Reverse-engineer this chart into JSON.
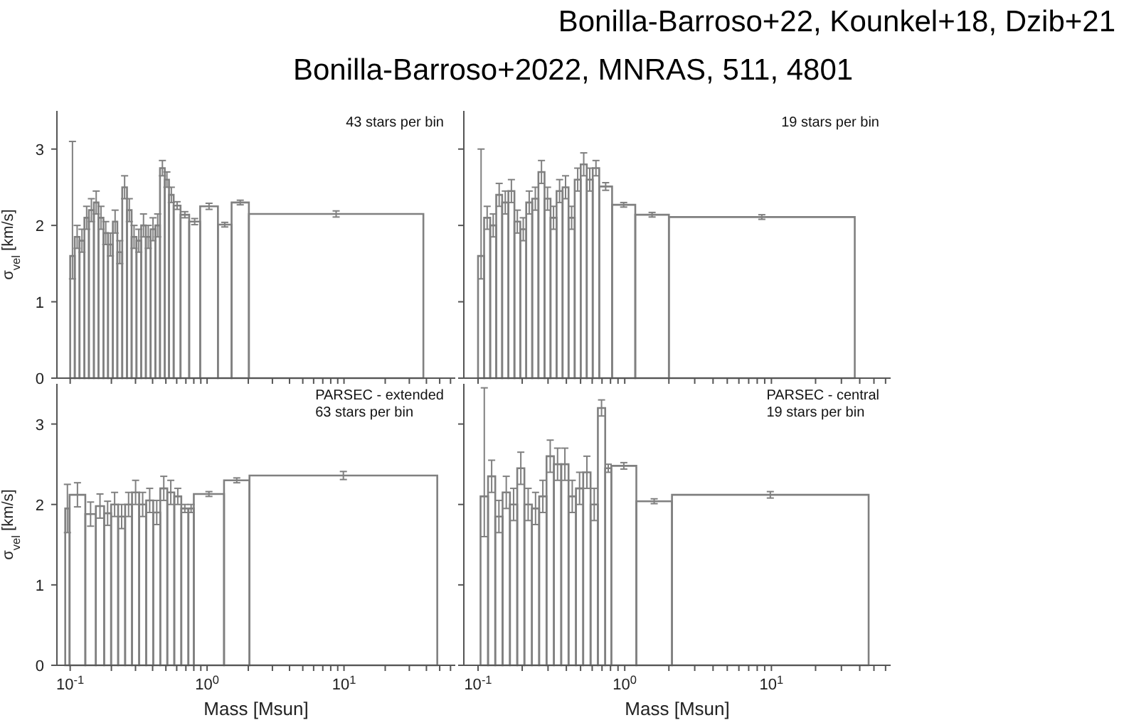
{
  "chart_data": [
    {
      "type": "other",
      "title": "Bonilla-Barroso+22, Kounkel+18, Dzib+21",
      "subtitle": "Bonilla-Barroso+2022, MNRAS, 511, 4801"
    },
    {
      "type": "histogram",
      "ylabel": "σ$_{vel}$ [km/s]",
      "annotations": [
        "43 stars per bin"
      ],
      "log": "x",
      "tick_labels": "y",
      "color": "#808080",
      "xlim": [
        0.08,
        65
      ],
      "ylim": [
        0,
        3.5
      ],
      "yticks": [
        0,
        1,
        2,
        3
      ],
      "xticks": [
        {
          "value": 0.1,
          "label": null
        },
        {
          "value": 0.2,
          "label": null
        },
        {
          "value": 0.3,
          "label": null
        },
        {
          "value": 0.4,
          "label": null
        },
        {
          "value": 0.5,
          "label": null
        },
        {
          "value": 0.6,
          "label": null
        },
        {
          "value": 0.7,
          "label": null
        },
        {
          "value": 0.8,
          "label": null
        },
        {
          "value": 0.9,
          "label": null
        },
        {
          "value": 1,
          "label": null
        },
        {
          "value": 2,
          "label": null
        },
        {
          "value": 3,
          "label": null
        },
        {
          "value": 4,
          "label": null
        },
        {
          "value": 5,
          "label": null
        },
        {
          "value": 6,
          "label": null
        },
        {
          "value": 7,
          "label": null
        },
        {
          "value": 8,
          "label": null
        },
        {
          "value": 9,
          "label": null
        },
        {
          "value": 10,
          "label": null
        },
        {
          "value": 20,
          "label": null
        },
        {
          "value": 30,
          "label": null
        },
        {
          "value": 40,
          "label": null
        },
        {
          "value": 50,
          "label": null
        },
        {
          "value": 60,
          "label": null
        }
      ],
      "bins": [
        0.1,
        0.108,
        0.117,
        0.127,
        0.137,
        0.149,
        0.161,
        0.175,
        0.189,
        0.205,
        0.221,
        0.24,
        0.26,
        0.281,
        0.305,
        0.33,
        0.357,
        0.387,
        0.419,
        0.453,
        0.491,
        0.527,
        0.57,
        0.64,
        0.74,
        0.89,
        1.2,
        1.51,
        2.02,
        38
      ],
      "values": [
        1.6,
        1.85,
        1.8,
        2.1,
        2.2,
        2.3,
        2.1,
        1.9,
        1.75,
        2.05,
        1.65,
        2.5,
        2.2,
        1.85,
        1.8,
        2.0,
        1.85,
        1.95,
        2.0,
        2.75,
        2.6,
        2.4,
        2.26,
        2.14,
        2.05,
        2.25,
        2.01,
        2.3,
        2.15
      ],
      "errors": [
        [
          1.3,
          3.1
        ],
        0.15,
        0.15,
        0.15,
        0.15,
        0.15,
        0.15,
        0.15,
        0.15,
        0.15,
        0.15,
        0.15,
        0.15,
        0.15,
        0.15,
        0.15,
        0.15,
        0.15,
        0.15,
        0.1,
        0.1,
        0.1,
        0.05,
        0.04,
        0.04,
        0.04,
        0.03,
        0.03,
        0.04
      ]
    },
    {
      "type": "histogram",
      "annotations": [
        "19 stars per bin"
      ],
      "log": "x",
      "tick_labels": false,
      "color": "#808080",
      "xlim": [
        0.08,
        65
      ],
      "ylim": [
        0,
        3.5
      ],
      "yticks": [
        0,
        1,
        2,
        3
      ],
      "xticks": [
        {
          "value": 0.1,
          "label": null
        },
        {
          "value": 0.2,
          "label": null
        },
        {
          "value": 0.3,
          "label": null
        },
        {
          "value": 0.4,
          "label": null
        },
        {
          "value": 0.5,
          "label": null
        },
        {
          "value": 0.6,
          "label": null
        },
        {
          "value": 0.7,
          "label": null
        },
        {
          "value": 0.8,
          "label": null
        },
        {
          "value": 0.9,
          "label": null
        },
        {
          "value": 1,
          "label": null
        },
        {
          "value": 2,
          "label": null
        },
        {
          "value": 3,
          "label": null
        },
        {
          "value": 4,
          "label": null
        },
        {
          "value": 5,
          "label": null
        },
        {
          "value": 6,
          "label": null
        },
        {
          "value": 7,
          "label": null
        },
        {
          "value": 8,
          "label": null
        },
        {
          "value": 9,
          "label": null
        },
        {
          "value": 10,
          "label": null
        },
        {
          "value": 20,
          "label": null
        },
        {
          "value": 30,
          "label": null
        },
        {
          "value": 40,
          "label": null
        },
        {
          "value": 50,
          "label": null
        },
        {
          "value": 60,
          "label": null
        }
      ],
      "bins": [
        0.1,
        0.11,
        0.121,
        0.133,
        0.146,
        0.161,
        0.177,
        0.194,
        0.213,
        0.234,
        0.258,
        0.284,
        0.312,
        0.343,
        0.377,
        0.414,
        0.456,
        0.501,
        0.551,
        0.605,
        0.67,
        0.82,
        1.18,
        2.0,
        37
      ],
      "values": [
        1.6,
        2.1,
        2.0,
        2.4,
        2.3,
        2.45,
        2.05,
        1.95,
        2.3,
        2.35,
        2.7,
        2.35,
        2.1,
        2.45,
        2.5,
        2.1,
        2.6,
        2.8,
        2.6,
        2.75,
        2.51,
        2.27,
        2.14,
        2.11
      ],
      "errors": [
        [
          1.3,
          3.0
        ],
        0.15,
        0.15,
        0.15,
        0.15,
        0.15,
        0.15,
        0.15,
        0.15,
        0.15,
        0.15,
        0.15,
        0.15,
        0.15,
        0.15,
        0.15,
        0.15,
        0.15,
        0.15,
        0.1,
        0.05,
        0.03,
        0.03,
        0.03
      ]
    },
    {
      "type": "histogram",
      "xlabel": "Mass [Msun]",
      "ylabel": "σ$_{vel}$ [km/s]",
      "annotations": [
        "PARSEC - extended",
        "63 stars per bin"
      ],
      "log": "x",
      "color": "#808080",
      "xlim": [
        0.08,
        65
      ],
      "ylim": [
        0,
        3.5
      ],
      "yticks": [
        0,
        1,
        2,
        3
      ],
      "xticks": [
        {
          "value": 0.1,
          "label": "10$^{-1}$"
        },
        {
          "value": 0.2,
          "label": null
        },
        {
          "value": 0.3,
          "label": null
        },
        {
          "value": 0.4,
          "label": null
        },
        {
          "value": 0.5,
          "label": null
        },
        {
          "value": 0.6,
          "label": null
        },
        {
          "value": 0.7,
          "label": null
        },
        {
          "value": 0.8,
          "label": null
        },
        {
          "value": 0.9,
          "label": null
        },
        {
          "value": 1,
          "label": "10$^{0}$"
        },
        {
          "value": 2,
          "label": null
        },
        {
          "value": 3,
          "label": null
        },
        {
          "value": 4,
          "label": null
        },
        {
          "value": 5,
          "label": null
        },
        {
          "value": 6,
          "label": null
        },
        {
          "value": 7,
          "label": null
        },
        {
          "value": 8,
          "label": null
        },
        {
          "value": 9,
          "label": null
        },
        {
          "value": 10,
          "label": "10$^{1}$"
        },
        {
          "value": 20,
          "label": null
        },
        {
          "value": 30,
          "label": null
        },
        {
          "value": 40,
          "label": null
        },
        {
          "value": 50,
          "label": null
        },
        {
          "value": 60,
          "label": null
        }
      ],
      "bins": [
        0.092,
        0.099,
        0.129,
        0.154,
        0.177,
        0.199,
        0.224,
        0.252,
        0.283,
        0.319,
        0.359,
        0.404,
        0.455,
        0.512,
        0.576,
        0.648,
        0.73,
        0.8,
        1.33,
        2.04,
        48
      ],
      "values": [
        1.95,
        2.12,
        1.88,
        1.98,
        1.89,
        2.0,
        1.85,
        2.0,
        2.15,
        2.0,
        2.05,
        1.9,
        2.2,
        2.15,
        2.1,
        1.95,
        1.95,
        2.13,
        2.3,
        2.36
      ],
      "errors": [
        0.3,
        0.15,
        0.15,
        0.15,
        0.15,
        0.15,
        0.15,
        0.15,
        0.15,
        0.15,
        0.15,
        0.15,
        0.15,
        0.15,
        0.1,
        0.05,
        0.05,
        0.03,
        0.03,
        0.05
      ]
    },
    {
      "type": "histogram",
      "xlabel": "Mass [Msun]",
      "annotations": [
        "PARSEC - central",
        "19 stars per bin"
      ],
      "log": "x",
      "tick_labels": "x",
      "color": "#808080",
      "xlim": [
        0.08,
        65
      ],
      "ylim": [
        0,
        3.5
      ],
      "yticks": [
        0,
        1,
        2,
        3
      ],
      "xticks": [
        {
          "value": 0.1,
          "label": "10$^{-1}$"
        },
        {
          "value": 0.2,
          "label": null
        },
        {
          "value": 0.3,
          "label": null
        },
        {
          "value": 0.4,
          "label": null
        },
        {
          "value": 0.5,
          "label": null
        },
        {
          "value": 0.6,
          "label": null
        },
        {
          "value": 0.7,
          "label": null
        },
        {
          "value": 0.8,
          "label": null
        },
        {
          "value": 0.9,
          "label": null
        },
        {
          "value": 1,
          "label": "10$^{0}$"
        },
        {
          "value": 2,
          "label": null
        },
        {
          "value": 3,
          "label": null
        },
        {
          "value": 4,
          "label": null
        },
        {
          "value": 5,
          "label": null
        },
        {
          "value": 6,
          "label": null
        },
        {
          "value": 7,
          "label": null
        },
        {
          "value": 8,
          "label": null
        },
        {
          "value": 9,
          "label": null
        },
        {
          "value": 10,
          "label": "10$^{1}$"
        },
        {
          "value": 20,
          "label": null
        },
        {
          "value": 30,
          "label": null
        },
        {
          "value": 40,
          "label": null
        },
        {
          "value": 50,
          "label": null
        },
        {
          "value": 60,
          "label": null
        }
      ],
      "bins": [
        0.104,
        0.117,
        0.131,
        0.147,
        0.165,
        0.185,
        0.207,
        0.233,
        0.261,
        0.293,
        0.329,
        0.369,
        0.414,
        0.465,
        0.521,
        0.585,
        0.656,
        0.736,
        0.81,
        1.2,
        2.1,
        46
      ],
      "values": [
        2.1,
        2.35,
        1.85,
        2.15,
        2.0,
        2.45,
        2.0,
        1.95,
        2.1,
        2.6,
        2.5,
        2.5,
        2.1,
        2.2,
        2.4,
        2.0,
        3.2,
        2.45,
        2.48,
        2.04,
        2.12
      ],
      "errors": [
        [
          1.6,
          3.45
        ],
        0.2,
        0.2,
        0.2,
        0.2,
        0.2,
        0.2,
        0.2,
        0.2,
        0.2,
        0.2,
        0.2,
        0.2,
        0.2,
        0.2,
        0.2,
        0.1,
        0.05,
        0.04,
        0.03,
        0.04
      ]
    }
  ]
}
